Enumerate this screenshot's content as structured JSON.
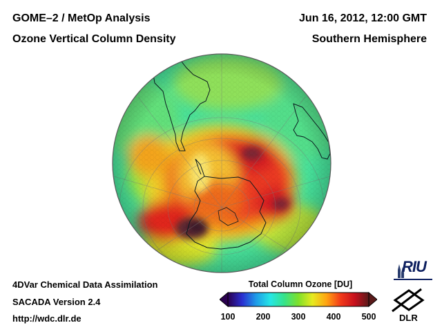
{
  "header": {
    "title": "GOME–2 / MetOp Analysis",
    "subtitle": "Ozone Vertical Column Density",
    "datetime": "Jun 16, 2012, 12:00 GMT",
    "hemisphere": "Southern Hemisphere"
  },
  "footer": {
    "line1": "4DVar Chemical Data Assimilation",
    "line2": "SACADA Version 2.4",
    "line3": "http://wdc.dlr.de"
  },
  "colorbar": {
    "title": "Total Column Ozone [DU]",
    "min": 100,
    "max": 500,
    "ticks": [
      "100",
      "200",
      "300",
      "400",
      "500"
    ],
    "stops": [
      "#2a004f",
      "#2a2ed0",
      "#1e9be8",
      "#25e6e6",
      "#36e38a",
      "#7ee02a",
      "#e7ea20",
      "#ffa412",
      "#f23a1a",
      "#c7101c",
      "#5a1a1a"
    ]
  },
  "logos": {
    "riu": "RIU",
    "dlr": "DLR"
  },
  "colors": {
    "globe_base": "#46e09a",
    "ring_red": "#e72b28",
    "core_dark": "#3b1f2a"
  }
}
